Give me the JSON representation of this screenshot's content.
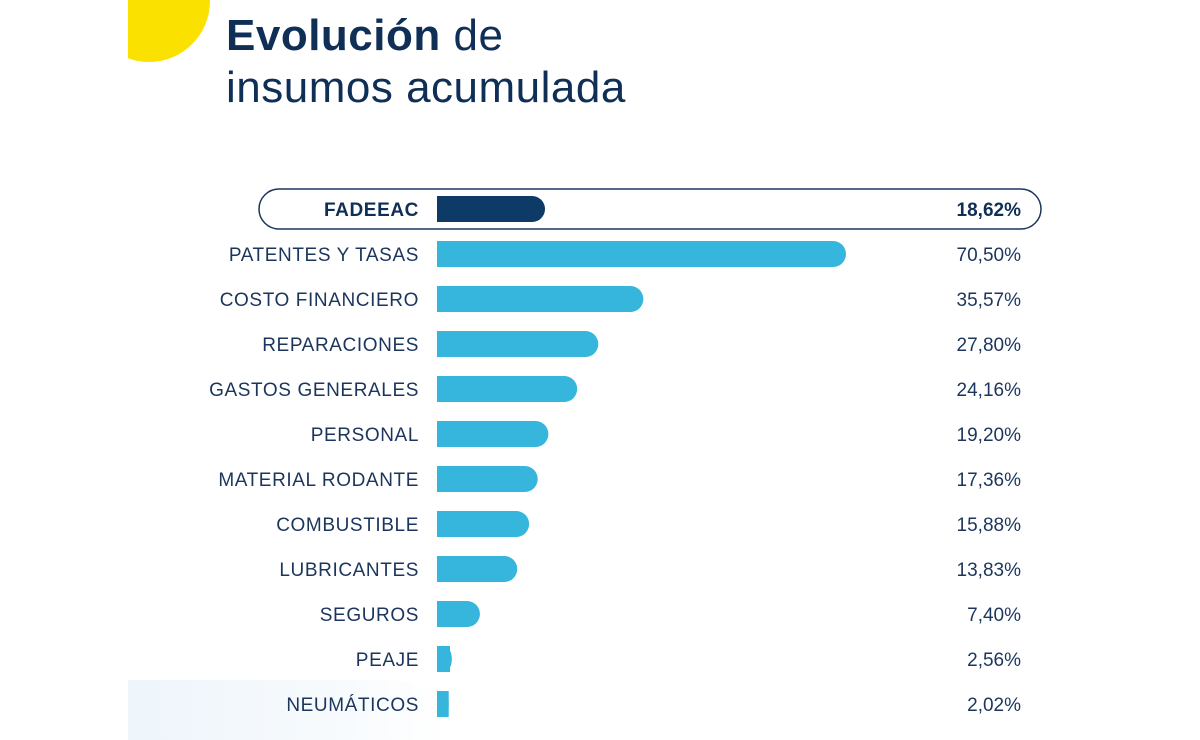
{
  "title": {
    "bold": "Evolución",
    "rest": "de",
    "line2": "insumos acumulada"
  },
  "colors": {
    "highlight_bar": "#0d3a66",
    "bar": "#36b5dd",
    "text": "#1b355c",
    "accent_sun": "#fbe100"
  },
  "chart_data": {
    "type": "bar",
    "orientation": "horizontal",
    "categories": [
      "FADEEAC",
      "PATENTES Y TASAS",
      "COSTO FINANCIERO",
      "REPARACIONES",
      "GASTOS GENERALES",
      "PERSONAL",
      "MATERIAL RODANTE",
      "COMBUSTIBLE",
      "LUBRICANTES",
      "SEGUROS",
      "PEAJE",
      "NEUMÁTICOS"
    ],
    "values": [
      18.62,
      70.5,
      35.57,
      27.8,
      24.16,
      19.2,
      17.36,
      15.88,
      13.83,
      7.4,
      2.56,
      2.02
    ],
    "value_labels": [
      "18,62%",
      "70,50%",
      "35,57%",
      "27,80%",
      "24,16%",
      "19,20%",
      "17,36%",
      "15,88%",
      "13,83%",
      "7,40%",
      "2,56%",
      "2,02%"
    ],
    "highlight": "FADEEAC",
    "grid": false
  }
}
